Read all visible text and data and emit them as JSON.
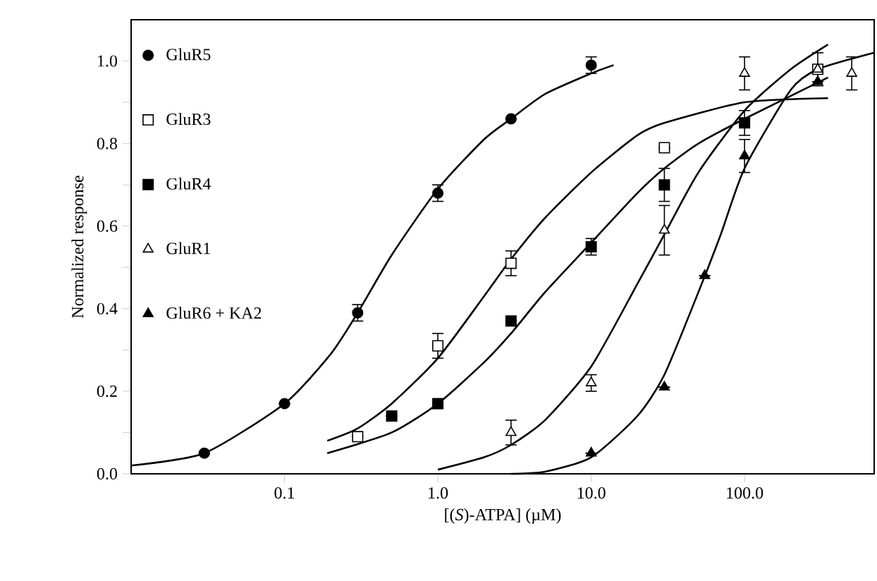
{
  "chart_data": {
    "type": "scatter",
    "xlabel": "[(*S*)-ATPA] (µM)",
    "ylabel": "Normalized response",
    "log": "x",
    "xlim": [
      0.01,
      700
    ],
    "ylim": [
      0,
      1.1
    ],
    "xticks": [
      {
        "value": 0.1,
        "label": "0.1"
      },
      {
        "value": 1,
        "label": "1.0"
      },
      {
        "value": 10,
        "label": "10.0"
      },
      {
        "value": 100,
        "label": "100.0"
      }
    ],
    "yticks": [
      {
        "value": 0,
        "label": "0.0"
      },
      {
        "value": 0.1,
        "label": null
      },
      {
        "value": 0.2,
        "label": "0.2"
      },
      {
        "value": 0.3,
        "label": null
      },
      {
        "value": 0.4,
        "label": "0.4"
      },
      {
        "value": 0.5,
        "label": null
      },
      {
        "value": 0.6,
        "label": "0.6"
      },
      {
        "value": 0.7,
        "label": null
      },
      {
        "value": 0.8,
        "label": "0.8"
      },
      {
        "value": 0.9,
        "label": null
      },
      {
        "value": 1.0,
        "label": "1.0"
      }
    ],
    "grid": false,
    "legend": "top left",
    "series": [
      {
        "name": "GluR5",
        "marker": "circle",
        "color": "#000000",
        "x": [
          0.03,
          0.1,
          0.3,
          1,
          3,
          10
        ],
        "values": [
          0.05,
          0.17,
          0.39,
          0.68,
          0.86,
          0.99
        ],
        "errors": [
          null,
          null,
          0.02,
          0.02,
          null,
          0.02
        ]
      },
      {
        "name": "GluR3",
        "marker": "square",
        "color": "#ffffff",
        "x": [
          0.3,
          1,
          3,
          30,
          100,
          300
        ],
        "values": [
          0.09,
          0.31,
          0.51,
          0.79,
          null,
          0.98
        ],
        "errors": [
          null,
          0.03,
          0.03,
          null,
          null,
          0.04
        ]
      },
      {
        "name": "GluR4",
        "marker": "square",
        "color": "#000000",
        "x": [
          0.5,
          1,
          3,
          10,
          30,
          100
        ],
        "values": [
          0.14,
          0.17,
          0.37,
          0.55,
          0.7,
          0.85
        ],
        "errors": [
          null,
          null,
          null,
          0.02,
          0.04,
          0.03
        ]
      },
      {
        "name": "GluR1",
        "marker": "triangle",
        "color": "#ffffff",
        "x": [
          3,
          10,
          30,
          100,
          300,
          500
        ],
        "values": [
          0.1,
          0.22,
          0.59,
          0.97,
          0.98,
          0.97
        ],
        "errors": [
          0.03,
          0.02,
          0.06,
          0.04,
          null,
          0.04
        ]
      },
      {
        "name": "GluR6 + KA2",
        "marker": "triangle",
        "color": "#000000",
        "x": [
          10,
          30,
          55,
          100,
          300
        ],
        "values": [
          0.05,
          0.21,
          0.48,
          0.77,
          0.95
        ],
        "errors": [
          null,
          null,
          null,
          0.04,
          null
        ]
      },
      {
        "type": "line",
        "marker": "none",
        "color": "#000000",
        "x": [
          0.01,
          0.03,
          0.1,
          0.2,
          0.3,
          0.5,
          1,
          2,
          3,
          5,
          10,
          14
        ],
        "values": [
          0.02,
          0.05,
          0.17,
          0.29,
          0.39,
          0.53,
          0.69,
          0.81,
          0.86,
          0.92,
          0.97,
          0.99
        ]
      },
      {
        "type": "line",
        "marker": "none",
        "color": "#000000",
        "x": [
          0.19,
          0.3,
          0.5,
          1,
          2,
          3,
          5,
          10,
          20,
          30,
          100,
          350
        ],
        "values": [
          0.08,
          0.11,
          0.17,
          0.28,
          0.43,
          0.52,
          0.62,
          0.73,
          0.82,
          0.85,
          0.9,
          0.91
        ]
      },
      {
        "type": "line",
        "marker": "none",
        "color": "#000000",
        "x": [
          0.19,
          0.5,
          1,
          2,
          3,
          5,
          10,
          20,
          30,
          50,
          100,
          350
        ],
        "values": [
          0.05,
          0.1,
          0.17,
          0.27,
          0.34,
          0.44,
          0.56,
          0.68,
          0.74,
          0.8,
          0.86,
          0.96
        ]
      },
      {
        "type": "line",
        "marker": "none",
        "color": "#000000",
        "x": [
          1,
          2,
          3,
          5,
          10,
          20,
          30,
          50,
          100,
          200,
          350
        ],
        "values": [
          0.01,
          0.04,
          0.07,
          0.13,
          0.26,
          0.46,
          0.58,
          0.73,
          0.88,
          0.98,
          1.04
        ]
      },
      {
        "type": "line",
        "marker": "none",
        "color": "#000000",
        "x": [
          3,
          5,
          10,
          20,
          30,
          50,
          70,
          100,
          200,
          300,
          700
        ],
        "values": [
          0.0,
          0.005,
          0.04,
          0.14,
          0.24,
          0.44,
          0.58,
          0.74,
          0.93,
          0.98,
          1.02
        ]
      }
    ]
  }
}
